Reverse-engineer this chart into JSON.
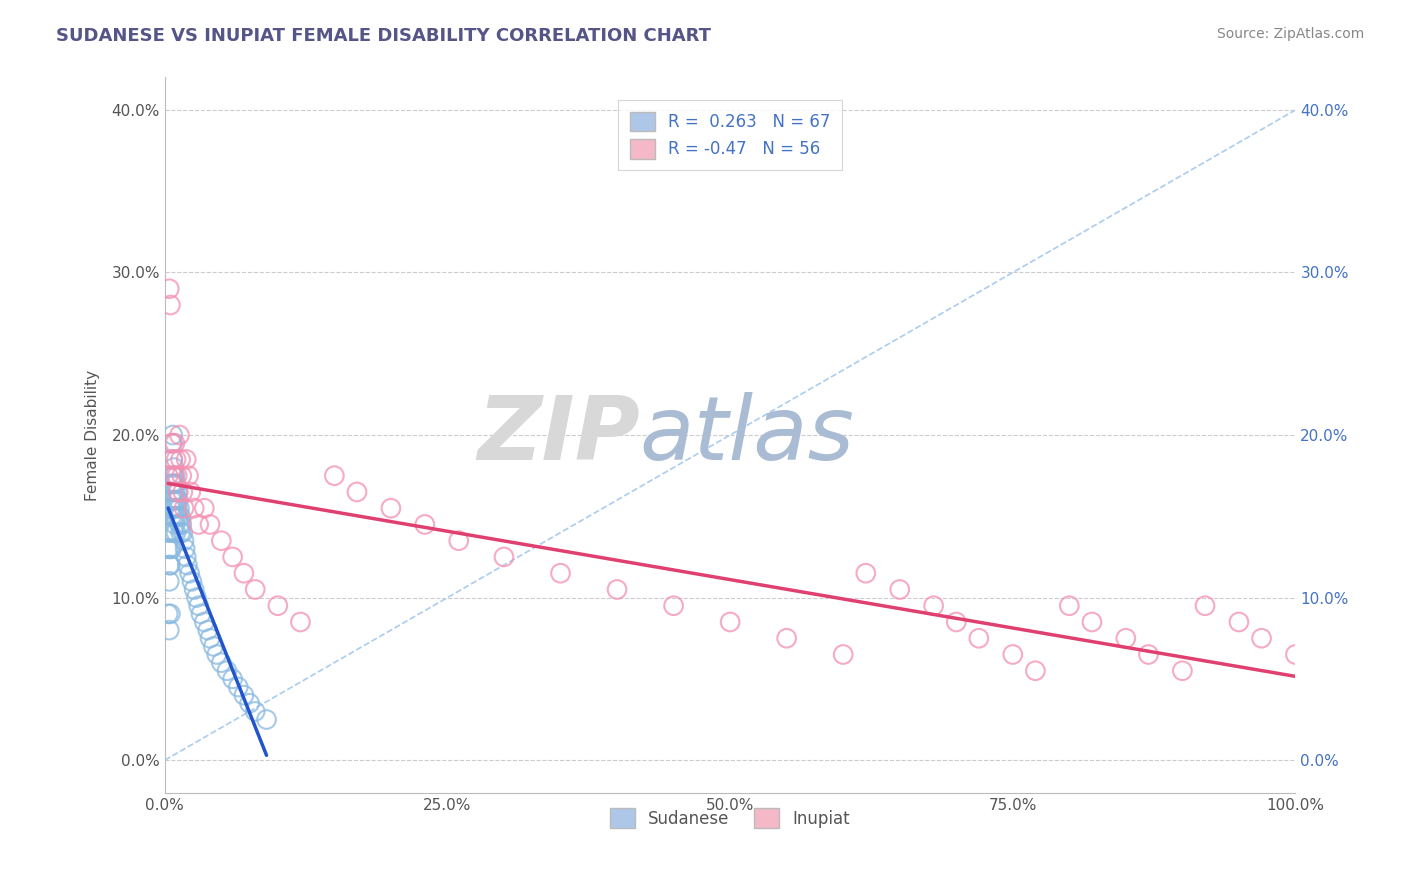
{
  "title": "SUDANESE VS INUPIAT FEMALE DISABILITY CORRELATION CHART",
  "source": "Source: ZipAtlas.com",
  "ylabel": "Female Disability",
  "xlim": [
    0,
    1.0
  ],
  "ylim": [
    -0.02,
    0.42
  ],
  "xticks": [
    0.0,
    0.25,
    0.5,
    0.75,
    1.0
  ],
  "xtick_labels": [
    "0.0%",
    "25.0%",
    "50.0%",
    "75.0%",
    "100.0%"
  ],
  "yticks": [
    0.0,
    0.1,
    0.2,
    0.3,
    0.4
  ],
  "ytick_labels": [
    "0.0%",
    "10.0%",
    "20.0%",
    "30.0%",
    "40.0%"
  ],
  "sudanese_R": 0.263,
  "sudanese_N": 67,
  "inupiat_R": -0.47,
  "inupiat_N": 56,
  "legend_color_sudanese": "#aec6e8",
  "legend_color_inupiat": "#f4b8c8",
  "scatter_color_sudanese": "#88b8e0",
  "scatter_color_inupiat": "#f48fb1",
  "trendline_color_sudanese": "#2255cc",
  "trendline_color_inupiat": "#e04070",
  "diagonal_color": "#aaccee",
  "grid_color": "#cccccc",
  "background_color": "#ffffff",
  "title_color": "#555588",
  "source_color": "#888888",
  "watermark_zip_color": "#d8d8d8",
  "watermark_atlas_color": "#aabbd4",
  "sudanese_x": [
    0.003,
    0.003,
    0.004,
    0.004,
    0.004,
    0.004,
    0.005,
    0.005,
    0.005,
    0.005,
    0.005,
    0.006,
    0.006,
    0.006,
    0.006,
    0.007,
    0.007,
    0.007,
    0.007,
    0.007,
    0.007,
    0.008,
    0.008,
    0.008,
    0.008,
    0.008,
    0.009,
    0.009,
    0.009,
    0.009,
    0.01,
    0.01,
    0.01,
    0.01,
    0.011,
    0.011,
    0.012,
    0.012,
    0.013,
    0.013,
    0.014,
    0.014,
    0.015,
    0.016,
    0.017,
    0.018,
    0.019,
    0.02,
    0.022,
    0.024,
    0.026,
    0.028,
    0.03,
    0.032,
    0.035,
    0.038,
    0.04,
    0.043,
    0.046,
    0.05,
    0.055,
    0.06,
    0.065,
    0.07,
    0.075,
    0.08,
    0.09
  ],
  "sudanese_y": [
    0.13,
    0.09,
    0.14,
    0.12,
    0.11,
    0.08,
    0.155,
    0.14,
    0.13,
    0.12,
    0.09,
    0.17,
    0.16,
    0.15,
    0.13,
    0.2,
    0.195,
    0.185,
    0.175,
    0.165,
    0.155,
    0.18,
    0.17,
    0.16,
    0.15,
    0.14,
    0.175,
    0.165,
    0.155,
    0.145,
    0.17,
    0.16,
    0.15,
    0.14,
    0.165,
    0.155,
    0.16,
    0.15,
    0.155,
    0.145,
    0.15,
    0.14,
    0.145,
    0.14,
    0.135,
    0.13,
    0.125,
    0.12,
    0.115,
    0.11,
    0.105,
    0.1,
    0.095,
    0.09,
    0.085,
    0.08,
    0.075,
    0.07,
    0.065,
    0.06,
    0.055,
    0.05,
    0.045,
    0.04,
    0.035,
    0.03,
    0.025
  ],
  "inupiat_x": [
    0.003,
    0.004,
    0.005,
    0.006,
    0.007,
    0.008,
    0.009,
    0.01,
    0.011,
    0.012,
    0.013,
    0.014,
    0.015,
    0.016,
    0.017,
    0.019,
    0.021,
    0.023,
    0.026,
    0.03,
    0.035,
    0.04,
    0.05,
    0.06,
    0.07,
    0.08,
    0.1,
    0.12,
    0.15,
    0.17,
    0.2,
    0.23,
    0.26,
    0.3,
    0.35,
    0.4,
    0.45,
    0.5,
    0.55,
    0.6,
    0.62,
    0.65,
    0.68,
    0.7,
    0.72,
    0.75,
    0.77,
    0.8,
    0.82,
    0.85,
    0.87,
    0.9,
    0.92,
    0.95,
    0.97,
    1.0
  ],
  "inupiat_y": [
    0.175,
    0.29,
    0.28,
    0.195,
    0.185,
    0.175,
    0.195,
    0.185,
    0.175,
    0.165,
    0.2,
    0.185,
    0.175,
    0.165,
    0.155,
    0.185,
    0.175,
    0.165,
    0.155,
    0.145,
    0.155,
    0.145,
    0.135,
    0.125,
    0.115,
    0.105,
    0.095,
    0.085,
    0.175,
    0.165,
    0.155,
    0.145,
    0.135,
    0.125,
    0.115,
    0.105,
    0.095,
    0.085,
    0.075,
    0.065,
    0.115,
    0.105,
    0.095,
    0.085,
    0.075,
    0.065,
    0.055,
    0.095,
    0.085,
    0.075,
    0.065,
    0.055,
    0.095,
    0.085,
    0.075,
    0.065
  ]
}
